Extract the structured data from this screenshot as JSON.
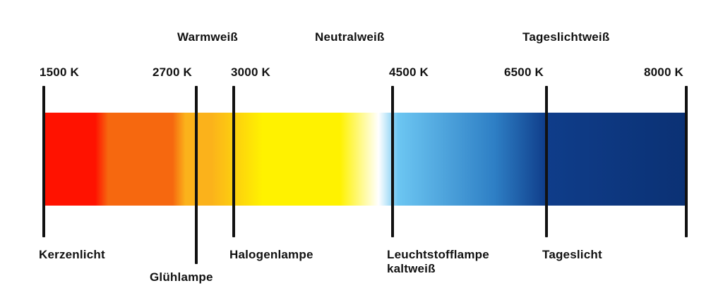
{
  "categories": {
    "warm": "Warmweiß",
    "neutral": "Neutralweiß",
    "daylight": "Tageslichtweiß"
  },
  "temperatures": {
    "k1500": "1500 K",
    "k2700": "2700 K",
    "k3000": "3000 K",
    "k4500": "4500 K",
    "k6500": "6500 K",
    "k8000": "8000 K"
  },
  "light_sources": {
    "candle": "Kerzenlicht",
    "incandescent": "Glühlampe",
    "halogen": "Halogenlampe",
    "fluorescent_line1": "Leuchtstofflampe",
    "fluorescent_line2": "kaltweiß",
    "daylight": "Tageslicht"
  },
  "colors": {
    "red": "#ff1200",
    "orange": "#f6680f",
    "amber": "#fbb21b",
    "yellow": "#fff200",
    "white": "#ffffff",
    "light_blue": "#6cc6f2",
    "mid_blue": "#2e7fc5",
    "navy": "#0f3d8a",
    "dark_navy": "#0b3174"
  }
}
